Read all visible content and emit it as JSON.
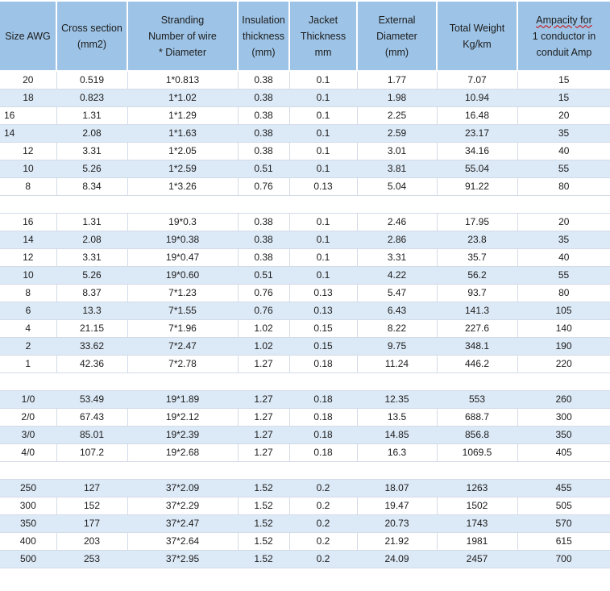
{
  "colors": {
    "header_bg": "#9dc3e6",
    "band_bg": "#dce9f6",
    "border": "#d3dbe7",
    "text": "#1c1c1c",
    "squiggle": "#cc0000"
  },
  "table": {
    "headers": [
      {
        "lines": [
          "Size AWG"
        ]
      },
      {
        "lines": [
          "Cross section",
          "(mm2)"
        ]
      },
      {
        "lines": [
          "Stranding",
          "Number of wire",
          "* Diameter"
        ]
      },
      {
        "lines": [
          "Insulation",
          "thickness",
          "(mm)"
        ]
      },
      {
        "lines": [
          "Jacket",
          "Thickness",
          "mm"
        ]
      },
      {
        "lines": [
          "External",
          "Diameter",
          "(mm)"
        ]
      },
      {
        "lines": [
          "Total Weight",
          "Kg/km"
        ]
      },
      {
        "lines": [
          "Ampacity for",
          "1 conductor in",
          "conduit Amp"
        ],
        "squiggle_line": 0
      }
    ],
    "rows": [
      {
        "cells": [
          "20",
          "0.519",
          "1*0.813",
          "0.38",
          "0.1",
          "1.77",
          "7.07",
          "15"
        ],
        "shaded": false
      },
      {
        "cells": [
          "18",
          "0.823",
          "1*1.02",
          "0.38",
          "0.1",
          "1.98",
          "10.94",
          "15"
        ],
        "shaded": true
      },
      {
        "cells": [
          "16",
          "1.31",
          "1*1.29",
          "0.38",
          "0.1",
          "2.25",
          "16.48",
          "20"
        ],
        "shaded": false,
        "first_col_align": "left"
      },
      {
        "cells": [
          "14",
          "2.08",
          "1*1.63",
          "0.38",
          "0.1",
          "2.59",
          "23.17",
          "35"
        ],
        "shaded": true,
        "first_col_align": "left"
      },
      {
        "cells": [
          "12",
          "3.31",
          "1*2.05",
          "0.38",
          "0.1",
          "3.01",
          "34.16",
          "40"
        ],
        "shaded": false
      },
      {
        "cells": [
          "10",
          "5.26",
          "1*2.59",
          "0.51",
          "0.1",
          "3.81",
          "55.04",
          "55"
        ],
        "shaded": true
      },
      {
        "cells": [
          "8",
          "8.34",
          "1*3.26",
          "0.76",
          "0.13",
          "5.04",
          "91.22",
          "80"
        ],
        "shaded": false
      },
      {
        "separator": true
      },
      {
        "cells": [
          "16",
          "1.31",
          "19*0.3",
          "0.38",
          "0.1",
          "2.46",
          "17.95",
          "20"
        ],
        "shaded": false
      },
      {
        "cells": [
          "14",
          "2.08",
          "19*0.38",
          "0.38",
          "0.1",
          "2.86",
          "23.8",
          "35"
        ],
        "shaded": true
      },
      {
        "cells": [
          "12",
          "3.31",
          "19*0.47",
          "0.38",
          "0.1",
          "3.31",
          "35.7",
          "40"
        ],
        "shaded": false
      },
      {
        "cells": [
          "10",
          "5.26",
          "19*0.60",
          "0.51",
          "0.1",
          "4.22",
          "56.2",
          "55"
        ],
        "shaded": true
      },
      {
        "cells": [
          "8",
          "8.37",
          "7*1.23",
          "0.76",
          "0.13",
          "5.47",
          "93.7",
          "80"
        ],
        "shaded": false
      },
      {
        "cells": [
          "6",
          "13.3",
          "7*1.55",
          "0.76",
          "0.13",
          "6.43",
          "141.3",
          "105"
        ],
        "shaded": true
      },
      {
        "cells": [
          "4",
          "21.15",
          "7*1.96",
          "1.02",
          "0.15",
          "8.22",
          "227.6",
          "140"
        ],
        "shaded": false
      },
      {
        "cells": [
          "2",
          "33.62",
          "7*2.47",
          "1.02",
          "0.15",
          "9.75",
          "348.1",
          "190"
        ],
        "shaded": true
      },
      {
        "cells": [
          "1",
          "42.36",
          "7*2.78",
          "1.27",
          "0.18",
          "11.24",
          "446.2",
          "220"
        ],
        "shaded": false
      },
      {
        "separator": true
      },
      {
        "cells": [
          "1/0",
          "53.49",
          "19*1.89",
          "1.27",
          "0.18",
          "12.35",
          "553",
          "260"
        ],
        "shaded": true
      },
      {
        "cells": [
          "2/0",
          "67.43",
          "19*2.12",
          "1.27",
          "0.18",
          "13.5",
          "688.7",
          "300"
        ],
        "shaded": false
      },
      {
        "cells": [
          "3/0",
          "85.01",
          "19*2.39",
          "1.27",
          "0.18",
          "14.85",
          "856.8",
          "350"
        ],
        "shaded": true
      },
      {
        "cells": [
          "4/0",
          "107.2",
          "19*2.68",
          "1.27",
          "0.18",
          "16.3",
          "1069.5",
          "405"
        ],
        "shaded": false
      },
      {
        "separator": true
      },
      {
        "cells": [
          "250",
          "127",
          "37*2.09",
          "1.52",
          "0.2",
          "18.07",
          "1263",
          "455"
        ],
        "shaded": true
      },
      {
        "cells": [
          "300",
          "152",
          "37*2.29",
          "1.52",
          "0.2",
          "19.47",
          "1502",
          "505"
        ],
        "shaded": false
      },
      {
        "cells": [
          "350",
          "177",
          "37*2.47",
          "1.52",
          "0.2",
          "20.73",
          "1743",
          "570"
        ],
        "shaded": true
      },
      {
        "cells": [
          "400",
          "203",
          "37*2.64",
          "1.52",
          "0.2",
          "21.92",
          "1981",
          "615"
        ],
        "shaded": false
      },
      {
        "cells": [
          "500",
          "253",
          "37*2.95",
          "1.52",
          "0.2",
          "24.09",
          "2457",
          "700"
        ],
        "shaded": true
      }
    ]
  }
}
